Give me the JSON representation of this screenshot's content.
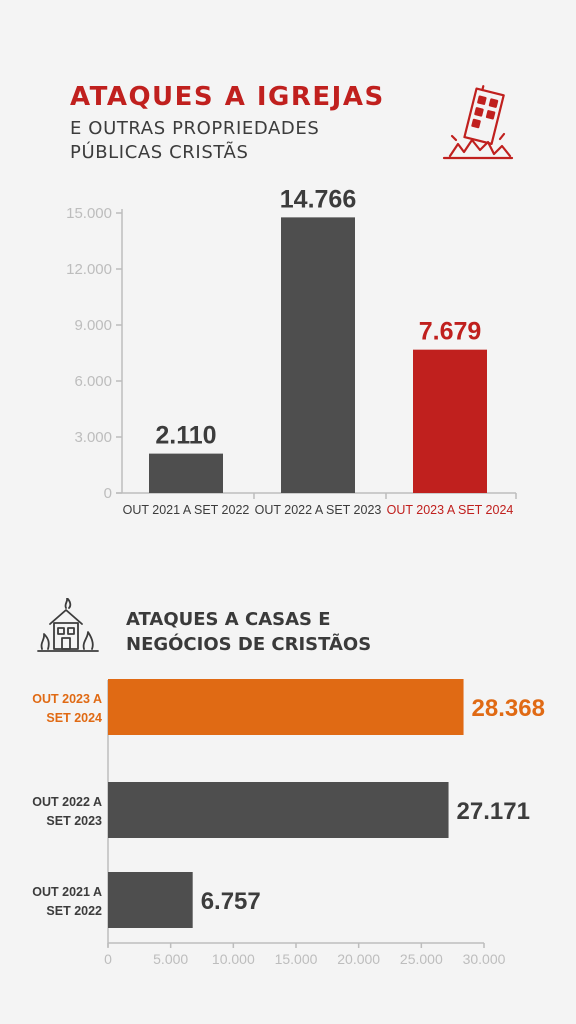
{
  "colors": {
    "accent_red": "#c0201e",
    "accent_orange": "#e06a14",
    "bar_gray": "#4e4e4e",
    "axis_gray": "#bdbdbd",
    "text_dark": "#3c3c3c"
  },
  "icons": {
    "building_icon": "collapsing-building-icon",
    "house_icon": "burning-house-icon"
  },
  "chart1": {
    "title": "ATAQUES A IGREJAS",
    "subtitle_lines": [
      "E OUTRAS PROPRIEDADES",
      "PÚBLICAS CRISTÃS"
    ]
  },
  "chart2": {
    "title_lines": [
      "ATAQUES A CASAS E",
      "NEGÓCIOS DE CRISTÃOS"
    ]
  },
  "chart_data": [
    {
      "type": "bar",
      "title": "ATAQUES A IGREJAS",
      "subtitle": "E OUTRAS PROPRIEDADES PÚBLICAS CRISTÃS",
      "categories": [
        "OUT 2021 A SET 2022",
        "OUT 2022 A SET 2023",
        "OUT 2023 A SET 2024"
      ],
      "values": [
        2110,
        14766,
        7679
      ],
      "value_labels": [
        "2.110",
        "14.766",
        "7.679"
      ],
      "highlight_index": 2,
      "ylim": [
        0,
        15000
      ],
      "yticks": [
        0,
        3000,
        6000,
        9000,
        12000,
        15000
      ],
      "ytick_labels": [
        "0",
        "3.000",
        "6.000",
        "9.000",
        "12.000",
        "15.000"
      ],
      "grid": false
    },
    {
      "type": "bar",
      "orientation": "horizontal",
      "title": "ATAQUES A CASAS E NEGÓCIOS DE CRISTÃOS",
      "categories": [
        [
          "OUT 2023 A",
          "SET 2024"
        ],
        [
          "OUT 2022 A",
          "SET 2023"
        ],
        [
          "OUT 2021 A",
          "SET 2022"
        ]
      ],
      "values": [
        28368,
        27171,
        6757
      ],
      "value_labels": [
        "28.368",
        "27.171",
        "6.757"
      ],
      "highlight_index": 0,
      "xlim": [
        0,
        30000
      ],
      "xticks": [
        0,
        5000,
        10000,
        15000,
        20000,
        25000,
        30000
      ],
      "xtick_labels": [
        "0",
        "5.000",
        "10.000",
        "15.000",
        "20.000",
        "25.000",
        "30.000"
      ],
      "grid": false
    }
  ]
}
